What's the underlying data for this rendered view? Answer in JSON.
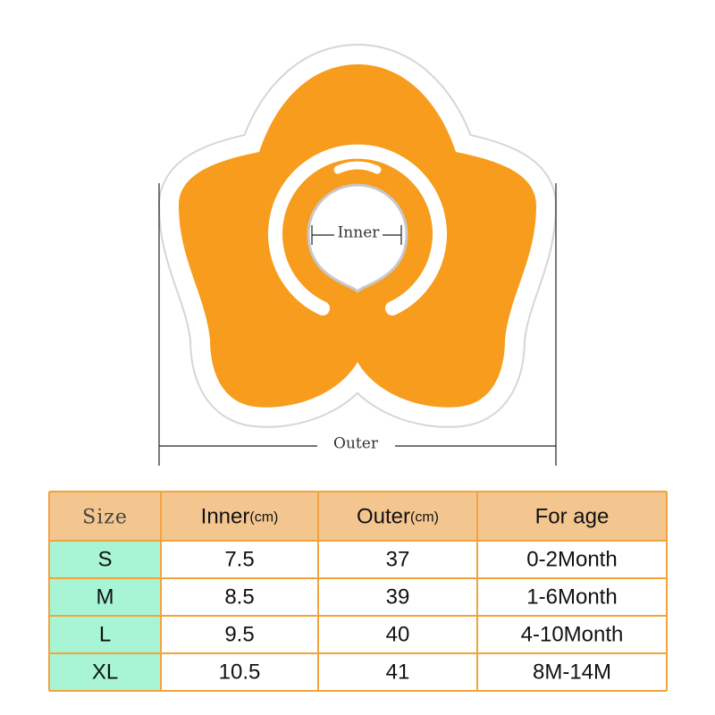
{
  "diagram": {
    "inner_label": "Inner",
    "outer_label": "Outer"
  },
  "table": {
    "header": [
      {
        "main": "Size"
      },
      {
        "main": "Inner",
        "unit": "(cm)"
      },
      {
        "main": "Outer",
        "unit": "(cm)"
      },
      {
        "main": "For age"
      }
    ],
    "rows": [
      [
        "S",
        "7.5",
        "37",
        "0-2Month"
      ],
      [
        "M",
        "8.5",
        "39",
        "1-6Month"
      ],
      [
        "L",
        "9.5",
        "40",
        "4-10Month"
      ],
      [
        "XL",
        "10.5",
        "41",
        "8M-14M"
      ]
    ]
  }
}
